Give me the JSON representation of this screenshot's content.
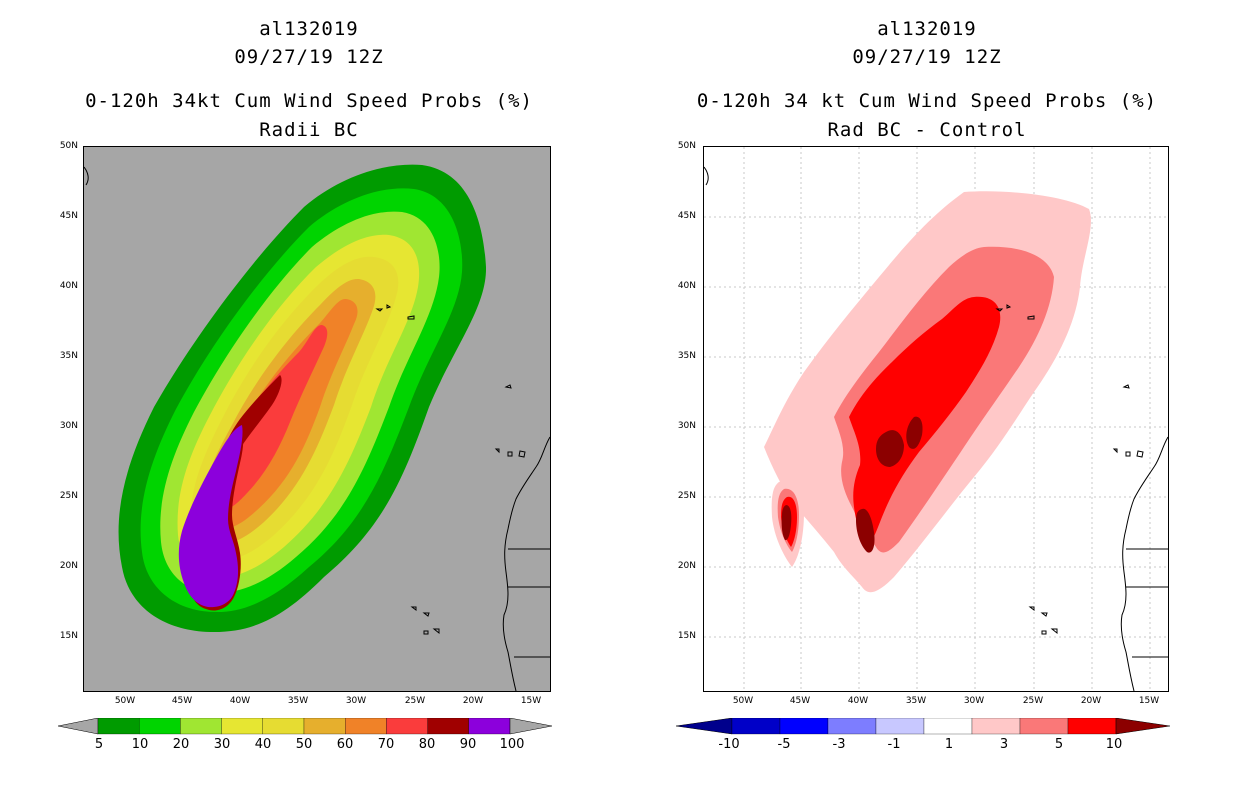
{
  "left": {
    "storm_id": "al132019",
    "datetime": "09/27/19 12Z",
    "title_line1": "0-120h 34kt Cum Wind Speed Probs (%)",
    "title_line2": "Radii BC",
    "lat_labels": [
      "50N",
      "45N",
      "40N",
      "35N",
      "30N",
      "25N",
      "20N",
      "15N"
    ],
    "lon_labels": [
      "50W",
      "45W",
      "40W",
      "35W",
      "30W",
      "25W",
      "20W",
      "15W"
    ],
    "colorbar": {
      "labels": [
        "5",
        "10",
        "20",
        "30",
        "40",
        "50",
        "60",
        "70",
        "80",
        "90",
        "100"
      ],
      "colors": [
        "#009b00",
        "#00d400",
        "#a0e632",
        "#e6e632",
        "#e6dc32",
        "#e6af2d",
        "#f08228",
        "#fa3c3c",
        "#a00000",
        "#8c00dc"
      ],
      "ends": "#a6a6a6"
    }
  },
  "right": {
    "storm_id": "al132019",
    "datetime": "09/27/19 12Z",
    "title_line1": "0-120h 34 kt Cum Wind Speed Probs (%)",
    "title_line2": "Rad BC - Control",
    "lat_labels": [
      "50N",
      "45N",
      "40N",
      "35N",
      "30N",
      "25N",
      "20N",
      "15N"
    ],
    "lon_labels": [
      "50W",
      "45W",
      "40W",
      "35W",
      "30W",
      "25W",
      "20W",
      "15W"
    ],
    "colorbar": {
      "labels": [
        "-10",
        "-5",
        "-3",
        "-1",
        "1",
        "3",
        "5",
        "10"
      ],
      "colors": [
        "#0000c8",
        "#0000ff",
        "#7d7dff",
        "#c8c8ff",
        "#ffffff",
        "#ffc8c8",
        "#fa7878",
        "#ff0000"
      ],
      "end_low": "#00008c",
      "end_high": "#8c0000"
    }
  }
}
